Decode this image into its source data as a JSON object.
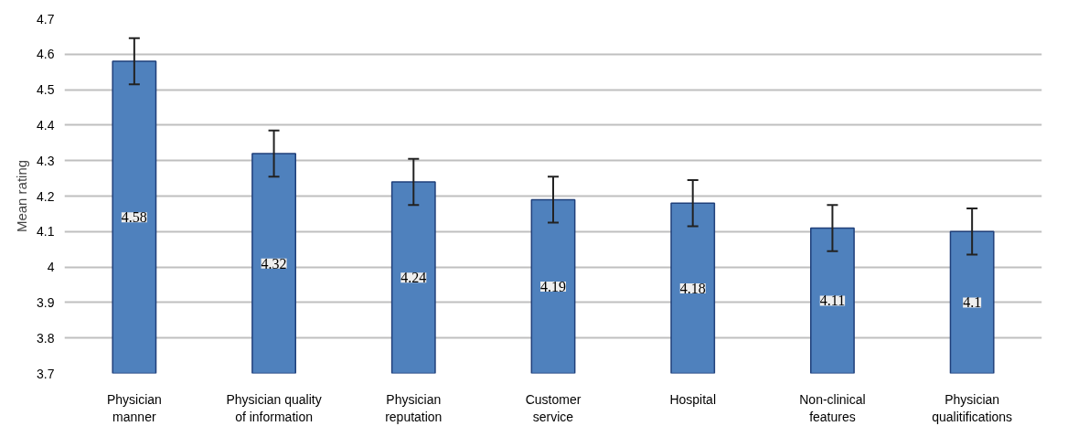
{
  "chart_data": {
    "type": "bar",
    "ylabel": "Mean rating",
    "categories": [
      "Physician\nmanner",
      "Physician quality\nof information",
      "Physician\nreputation",
      "Customer\nservice",
      "Hospital",
      "Non-clinical\nfeatures",
      "Physician\nqualitifications"
    ],
    "values": [
      4.58,
      4.32,
      4.24,
      4.19,
      4.18,
      4.11,
      4.1
    ],
    "errors": [
      0.065,
      0.065,
      0.065,
      0.065,
      0.065,
      0.065,
      0.065
    ],
    "color": "#4f81bd",
    "ylim": [
      3.7,
      4.7
    ],
    "yticks": [
      3.7,
      3.8,
      3.9,
      {
        "value": 4.0,
        "label": "4"
      },
      4.1,
      4.2,
      4.3,
      4.4,
      4.5,
      4.6,
      4.7
    ],
    "grid": "y",
    "data_labels": true
  }
}
